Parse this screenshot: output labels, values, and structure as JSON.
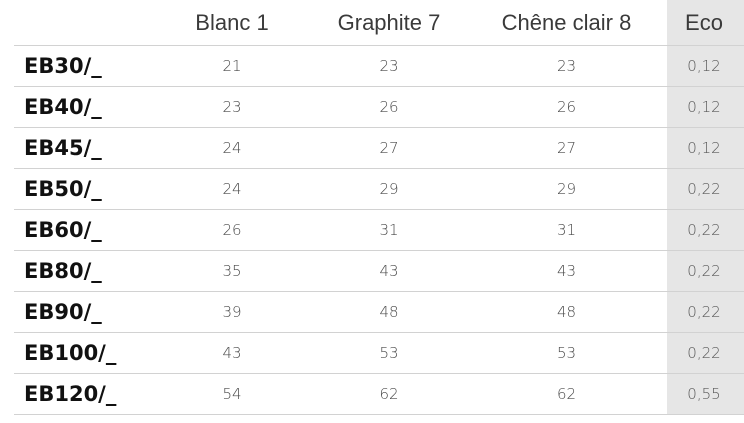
{
  "table": {
    "headers": {
      "ref": "",
      "blanc": "Blanc 1",
      "graphite": "Graphite 7",
      "chene": "Chêne clair 8",
      "eco": "Eco"
    },
    "rows": [
      {
        "ref": "EB30/_",
        "blanc": "21",
        "graphite": "23",
        "chene": "23",
        "eco": "0,12"
      },
      {
        "ref": "EB40/_",
        "blanc": "23",
        "graphite": "26",
        "chene": "26",
        "eco": "0,12"
      },
      {
        "ref": "EB45/_",
        "blanc": "24",
        "graphite": "27",
        "chene": "27",
        "eco": "0,12"
      },
      {
        "ref": "EB50/_",
        "blanc": "24",
        "graphite": "29",
        "chene": "29",
        "eco": "0,22"
      },
      {
        "ref": "EB60/_",
        "blanc": "26",
        "graphite": "31",
        "chene": "31",
        "eco": "0,22"
      },
      {
        "ref": "EB80/_",
        "blanc": "35",
        "graphite": "43",
        "chene": "43",
        "eco": "0,22"
      },
      {
        "ref": "EB90/_",
        "blanc": "39",
        "graphite": "48",
        "chene": "48",
        "eco": "0,22"
      },
      {
        "ref": "EB100/_",
        "blanc": "43",
        "graphite": "53",
        "chene": "53",
        "eco": "0,22"
      },
      {
        "ref": "EB120/_",
        "blanc": "54",
        "graphite": "62",
        "chene": "62",
        "eco": "0,55"
      }
    ]
  },
  "colors": {
    "eco_column_background": "#e6e6e6",
    "row_divider": "#d2d2d2"
  }
}
